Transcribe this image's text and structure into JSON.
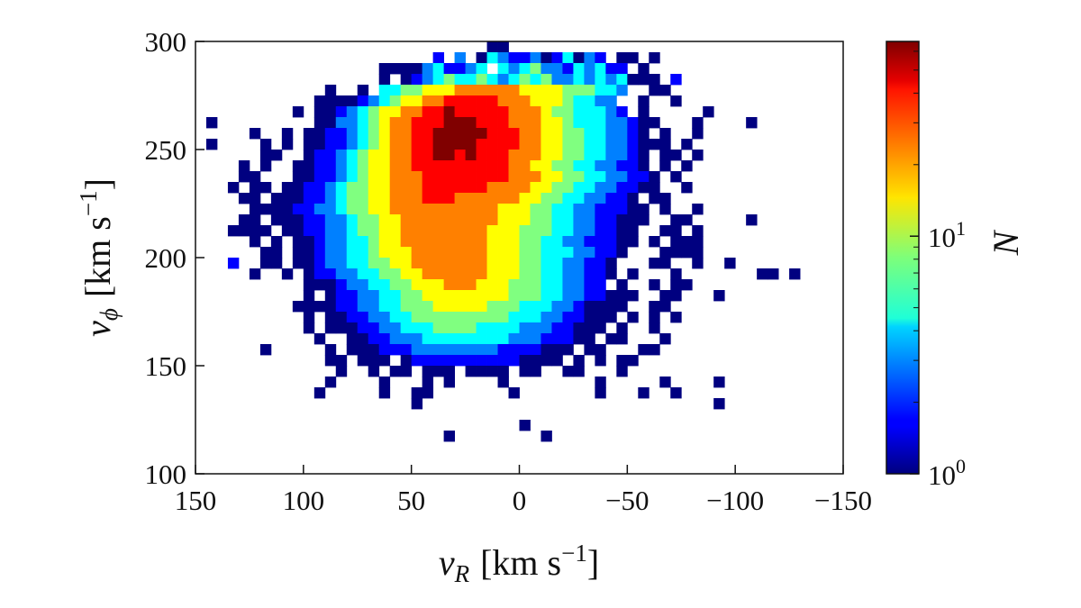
{
  "chart_data": {
    "type": "heatmap",
    "xlabel": {
      "var": "v",
      "sub": "R",
      "unit": "[km s",
      "exp": "−1",
      "close": "]"
    },
    "ylabel": {
      "var": "v",
      "sub": "ϕ",
      "unit": "[km s",
      "exp": "−1",
      "close": "]"
    },
    "xlim": [
      150,
      -150
    ],
    "ylim": [
      100,
      300
    ],
    "bin_width": 5,
    "x_ticks": [
      150,
      100,
      50,
      0,
      -50,
      -100,
      -150
    ],
    "x_tick_labels": [
      "150",
      "100",
      "50",
      "0",
      "−50",
      "−100",
      "−150"
    ],
    "y_ticks": [
      100,
      150,
      200,
      250,
      300
    ],
    "y_tick_labels": [
      "100",
      "150",
      "200",
      "250",
      "300"
    ],
    "colormap": "jet",
    "color_scale": "log",
    "colorbar": {
      "label": "N",
      "range": [
        1,
        66
      ],
      "ticks": [
        {
          "value": 1,
          "base": "10",
          "exp": "0"
        },
        {
          "value": 10,
          "base": "10",
          "exp": "1"
        }
      ]
    },
    "grid": false,
    "level_encoding": "rows from vφ=300 downward, columns from vR=150 to -150; '.' empty, '1'..'9' = log-count level (1 = N 1, 9 = max)",
    "rows": [
      "...........................11",
      "......................2.3.143223124132.11.1",
      ".................1111342234.434533243422.1",
      ".................1.123454454345453343434111.2",
      "............1..1.44556667777776666555443..11",
      "...........1111234566778888877766654433..1..1",
      ".........1.11234566778898888877765544432.1.....1",
      ".1.........11334567788899988877766544433211...1....1",
      ".....1..1.11223456778899999888776655443321.1..1",
      ".1....1.1.1122345677889999888877665544332111.1",
      "......11..12234566778899898887776655443321.11.1",
      "....1.1..112234566778888888887766554433221.1.1",
      "....11...1122345667778888888877766554433221.1",
      "...1.11.11223455667778888887777665544332211..1",
      "....11.1112234556677788877777766554433221.11",
      ".....1111223345566777777777766655443322211.1..1",
      "....11.11122334556677777777766655443322111..11.....1",
      "...1111.112233455667777777766655544332211..11.1",
      ".....1.1.11233445667777777766655443322211.1.111",
      "......11.1123344566677777776665544433221...1111",
      "...2..11.112334455667777777666554433221...11..1..1",
      ".....1..1.12233445566777777666554433221.1...1.......11.1",
      "..........1112334455666777666555443322.1..1.11",
      "..........1.12233445566666666555443322111..11...1",
      ".........1111223344555666665554443321111..11",
      "..........1.112233445555555554443322111.1.1.1",
      "..........1.11122334445555444433322111.1..1",
      "...........1..11223334444444433322211.11...1",
      "......1.....1.111222333333332222111.11...11",
      "............11.111.122222222221111.1.1.11",
      ".............1..1.11.111.1111.11..11...1",
      "............1....1...1.1....1........1.....1....1",
      "...........1.....1..11.......1.......1...1..1",
      "....................1...........................1",
      "",
      "..............................1",
      ".......................1........1",
      "",
      "",
      ""
    ]
  }
}
